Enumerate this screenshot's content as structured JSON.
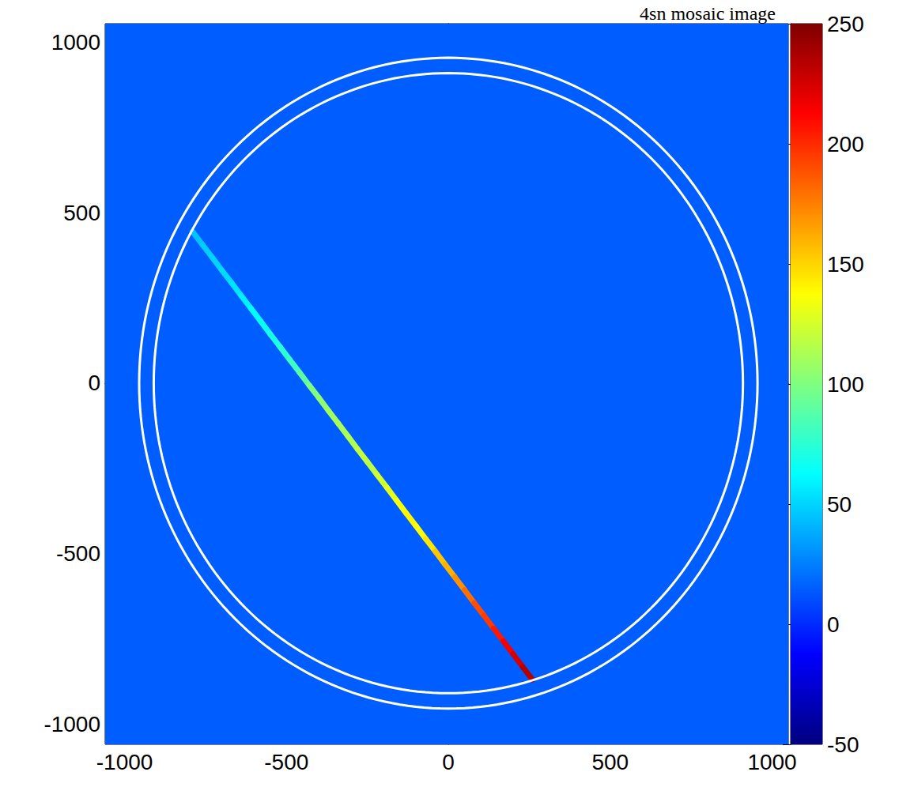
{
  "chart_data": {
    "type": "heatmap",
    "title": "4sn mosaic image",
    "xlim": [
      -1060,
      1050
    ],
    "ylim": [
      -1060,
      1055
    ],
    "xticks": [
      -1000,
      -500,
      0,
      500,
      1000
    ],
    "yticks": [
      -1000,
      -500,
      0,
      500,
      1000
    ],
    "grid": false,
    "background_value": 15,
    "streak": {
      "x": [
        -790,
        -760,
        -730,
        -700,
        -670,
        -640,
        -610,
        -580,
        -550,
        -520,
        -490,
        -460,
        -430,
        -400,
        -370,
        -340,
        -310,
        -280,
        -250,
        -220,
        -190,
        -160,
        -130,
        -100,
        -70,
        -40,
        -10,
        20,
        50,
        80,
        110,
        140,
        170,
        200,
        230,
        260
      ],
      "y": [
        445,
        407,
        370,
        332,
        295,
        257,
        220,
        182,
        144,
        107,
        69,
        32,
        -6,
        -43,
        -81,
        -118,
        -156,
        -194,
        -231,
        -269,
        -306,
        -344,
        -382,
        -419,
        -457,
        -494,
        -532,
        -569,
        -607,
        -645,
        -682,
        -720,
        -757,
        -795,
        -833,
        -870
      ],
      "values": [
        45,
        48,
        50,
        52,
        55,
        58,
        62,
        65,
        70,
        75,
        80,
        90,
        100,
        105,
        110,
        112,
        115,
        120,
        118,
        125,
        130,
        135,
        140,
        138,
        145,
        155,
        160,
        170,
        180,
        190,
        195,
        205,
        215,
        225,
        235,
        245
      ]
    },
    "circles": [
      {
        "radius": 955,
        "color": "#ffffff"
      },
      {
        "radius": 910,
        "color": "#ffffff"
      }
    ],
    "colorbar": {
      "range": [
        -50,
        250
      ],
      "ticks": [
        -50,
        0,
        50,
        100,
        150,
        200,
        250
      ]
    }
  }
}
